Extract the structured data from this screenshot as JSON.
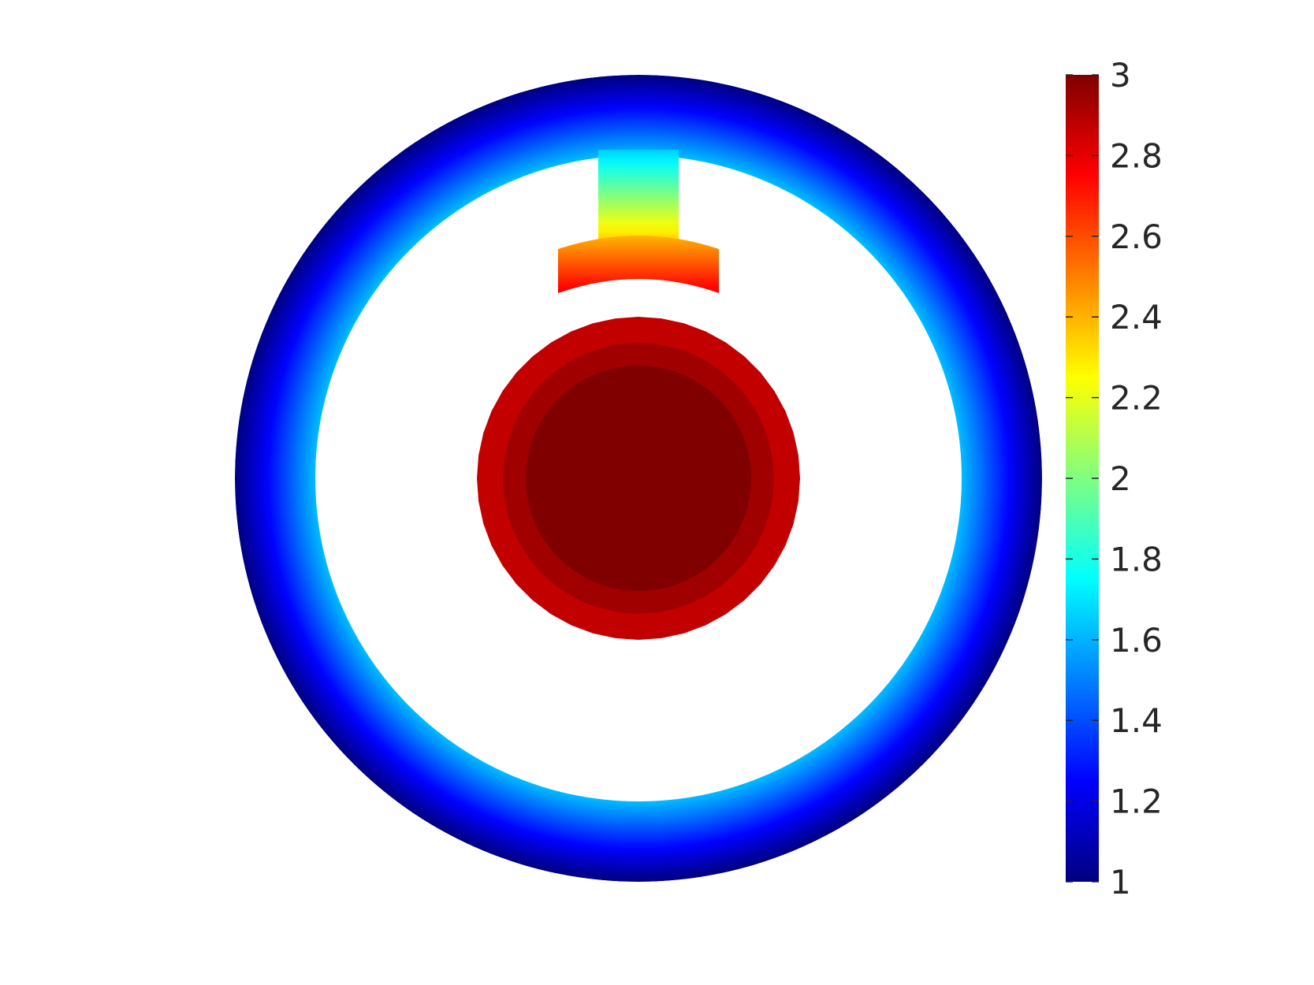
{
  "chart_data": {
    "type": "heatmap",
    "title": "",
    "xlabel": "",
    "ylabel": "",
    "colormap": "jet",
    "clim": [
      1,
      3
    ],
    "colorbar": {
      "location": "right",
      "ticks": [
        1,
        1.2,
        1.4,
        1.6,
        1.8,
        2,
        2.2,
        2.4,
        2.6,
        2.8,
        3
      ],
      "tick_labels": [
        "1",
        "1.2",
        "1.4",
        "1.6",
        "1.8",
        "2",
        "2.2",
        "2.4",
        "2.6",
        "2.8",
        "3"
      ]
    },
    "regions": [
      {
        "name": "outer ring",
        "value_outer_edge": 1.0,
        "value_inner_edge": 1.62
      },
      {
        "name": "connector stem",
        "value_top": 1.65,
        "value_bottom": 2.35
      },
      {
        "name": "arc pole tip",
        "value_top": 2.4,
        "value_bottom": 2.78
      },
      {
        "name": "central disc",
        "value_outer": 2.87,
        "value_inner": 3.0
      }
    ],
    "axes_visible": false,
    "grid": false
  }
}
